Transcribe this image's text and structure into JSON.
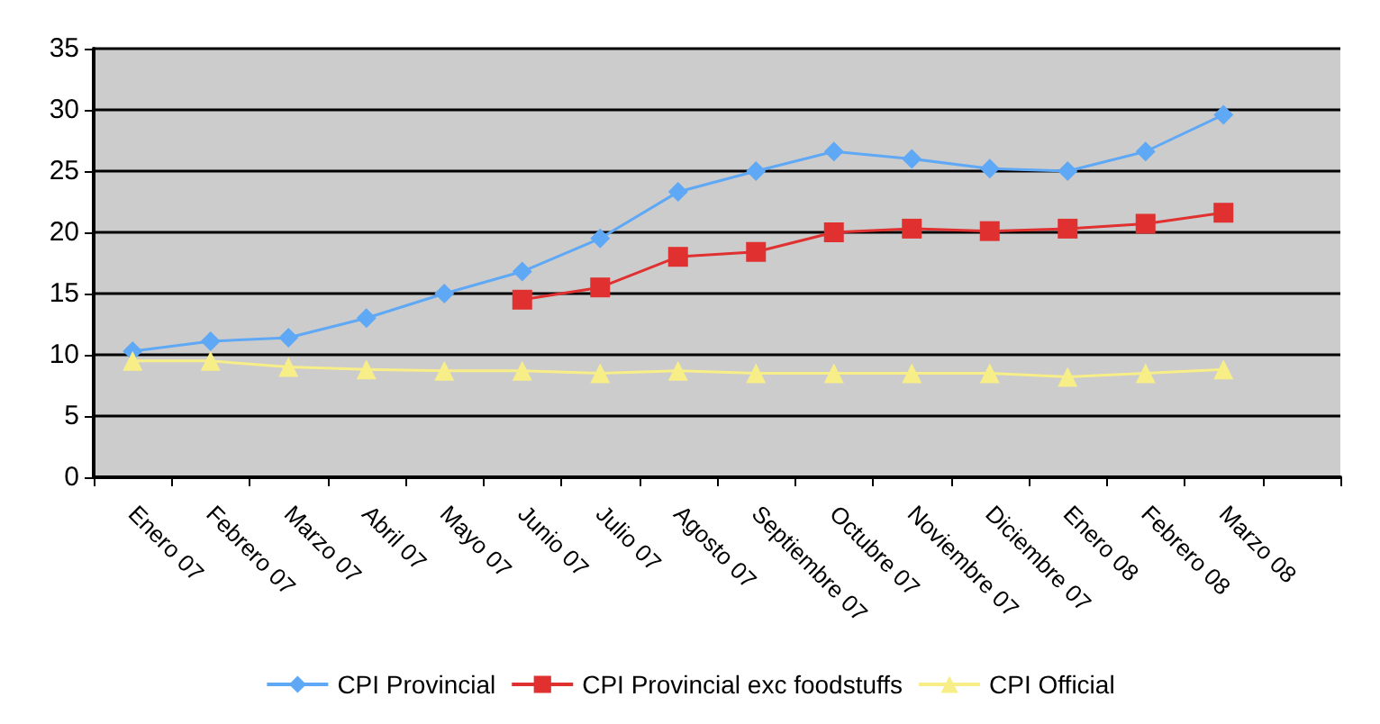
{
  "chart_data": {
    "type": "line",
    "categories": [
      "Enero 07",
      "Febrero 07",
      "Marzo 07",
      "Abril 07",
      "Mayo 07",
      "Junio 07",
      "Julio 07",
      "Agosto 07",
      "Septiembre 07",
      "Octubre 07",
      "Noviembre 07",
      "Diciembre 07",
      "Enero 08",
      "Febrero 08",
      "Marzo 08",
      null
    ],
    "series": [
      {
        "name": "CPI Provincial",
        "color": "#5fa8f5",
        "marker": "diamond",
        "values": [
          10.3,
          11.1,
          11.4,
          13.0,
          15.0,
          16.8,
          19.5,
          23.3,
          25.0,
          26.6,
          26.0,
          25.2,
          25.0,
          26.6,
          29.6,
          null
        ]
      },
      {
        "name": "CPI Provincial exc foodstuffs",
        "color": "#e03030",
        "marker": "square",
        "values": [
          null,
          null,
          null,
          null,
          null,
          14.5,
          15.5,
          18.0,
          18.4,
          20.0,
          20.3,
          20.1,
          20.3,
          20.7,
          21.6,
          null
        ]
      },
      {
        "name": "CPI Official",
        "color": "#f8ee88",
        "marker": "triangle",
        "values": [
          9.5,
          9.5,
          9.0,
          8.8,
          8.7,
          8.7,
          8.5,
          8.7,
          8.5,
          8.5,
          8.5,
          8.5,
          8.2,
          8.5,
          8.8,
          null
        ]
      }
    ],
    "ylim": [
      0,
      35
    ],
    "yticks": [
      0,
      5,
      10,
      15,
      20,
      25,
      30,
      35
    ],
    "grid": "y",
    "legend": "bottom"
  }
}
